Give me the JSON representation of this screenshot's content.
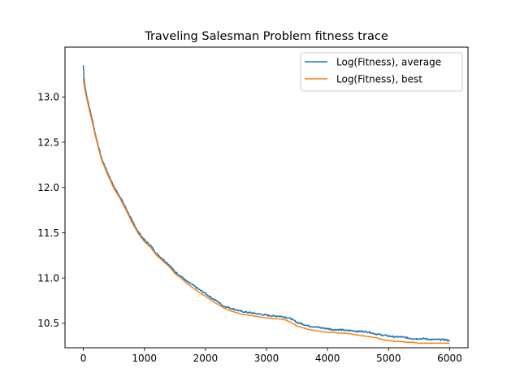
{
  "chart_data": {
    "type": "line",
    "title": "Traveling Salesman Problem fitness trace",
    "xlabel": "",
    "ylabel": "",
    "xlim": [
      -300,
      6300
    ],
    "ylim": [
      10.23,
      13.55
    ],
    "xticks": [
      0,
      1000,
      2000,
      3000,
      4000,
      5000,
      6000
    ],
    "xtick_labels": [
      "0",
      "1000",
      "2000",
      "3000",
      "4000",
      "5000",
      "6000"
    ],
    "yticks": [
      10.5,
      11.0,
      11.5,
      12.0,
      12.5,
      13.0
    ],
    "ytick_labels": [
      "10.5",
      "11.0",
      "11.5",
      "12.0",
      "12.5",
      "13.0"
    ],
    "grid": false,
    "legend_position": "upper right",
    "series": [
      {
        "name": "Log(Fitness), average",
        "color": "#1f77b4",
        "x": [
          0,
          10,
          25,
          50,
          100,
          150,
          200,
          300,
          400,
          500,
          600,
          700,
          800,
          900,
          1000,
          1100,
          1200,
          1300,
          1400,
          1500,
          1600,
          1700,
          1800,
          1900,
          2000,
          2100,
          2200,
          2300,
          2400,
          2500,
          2600,
          2700,
          2800,
          2900,
          3000,
          3100,
          3200,
          3300,
          3400,
          3500,
          3600,
          3700,
          3800,
          3900,
          4000,
          4100,
          4200,
          4300,
          4400,
          4500,
          4600,
          4700,
          4800,
          4900,
          5000,
          5100,
          5200,
          5300,
          5400,
          5500,
          5600,
          5700,
          5800,
          5900,
          6000
        ],
        "y": [
          13.35,
          13.22,
          13.12,
          13.03,
          12.88,
          12.74,
          12.58,
          12.32,
          12.16,
          12.01,
          11.9,
          11.77,
          11.63,
          11.51,
          11.42,
          11.36,
          11.27,
          11.21,
          11.15,
          11.07,
          11.02,
          10.96,
          10.92,
          10.87,
          10.83,
          10.78,
          10.74,
          10.69,
          10.67,
          10.65,
          10.63,
          10.62,
          10.61,
          10.6,
          10.59,
          10.58,
          10.58,
          10.57,
          10.55,
          10.51,
          10.49,
          10.47,
          10.46,
          10.45,
          10.44,
          10.43,
          10.43,
          10.42,
          10.42,
          10.41,
          10.41,
          10.4,
          10.38,
          10.37,
          10.36,
          10.35,
          10.35,
          10.34,
          10.33,
          10.33,
          10.33,
          10.32,
          10.32,
          10.32,
          10.31
        ]
      },
      {
        "name": "Log(Fitness), best",
        "color": "#ff7f0e",
        "x": [
          0,
          10,
          25,
          50,
          100,
          150,
          200,
          300,
          400,
          500,
          600,
          700,
          800,
          900,
          1000,
          1100,
          1200,
          1300,
          1400,
          1500,
          1600,
          1700,
          1800,
          1900,
          2000,
          2100,
          2200,
          2300,
          2400,
          2500,
          2600,
          2700,
          2800,
          2900,
          3000,
          3100,
          3200,
          3300,
          3400,
          3500,
          3600,
          3700,
          3800,
          3900,
          4000,
          4100,
          4200,
          4300,
          4400,
          4500,
          4600,
          4700,
          4800,
          4900,
          5000,
          5100,
          5200,
          5300,
          5400,
          5500,
          5600,
          5700,
          5800,
          5900,
          6000
        ],
        "y": [
          13.2,
          13.15,
          13.08,
          13.0,
          12.85,
          12.71,
          12.56,
          12.3,
          12.14,
          11.99,
          11.88,
          11.75,
          11.61,
          11.49,
          11.4,
          11.34,
          11.25,
          11.19,
          11.13,
          11.05,
          11.0,
          10.94,
          10.89,
          10.84,
          10.8,
          10.75,
          10.71,
          10.67,
          10.64,
          10.62,
          10.6,
          10.59,
          10.58,
          10.57,
          10.56,
          10.55,
          10.55,
          10.54,
          10.51,
          10.47,
          10.45,
          10.43,
          10.42,
          10.41,
          10.4,
          10.4,
          10.39,
          10.39,
          10.38,
          10.37,
          10.36,
          10.35,
          10.34,
          10.32,
          10.31,
          10.3,
          10.3,
          10.29,
          10.29,
          10.28,
          10.28,
          10.28,
          10.28,
          10.28,
          10.28
        ]
      }
    ]
  }
}
